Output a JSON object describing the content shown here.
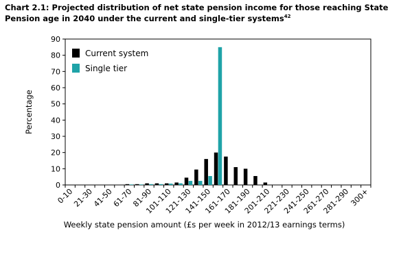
{
  "chart_data": {
    "type": "bar",
    "title": "Chart 2.1: Projected distribution of net state pension income for those reaching State Pension age in 2040 under the current and single-tier systems",
    "title_footnote": "42",
    "xlabel": "Weekly state pension amount (£s per week in 2012/13 earnings terms)",
    "ylabel": "Percentage",
    "ylim": [
      0,
      90
    ],
    "yticks": [
      0,
      10,
      20,
      30,
      40,
      50,
      60,
      70,
      80,
      90
    ],
    "grid": false,
    "legend_position": "top-left",
    "categories": [
      "0-10",
      "11-20",
      "21-30",
      "31-40",
      "41-50",
      "51-60",
      "61-70",
      "71-80",
      "81-90",
      "91-100",
      "101-110",
      "111-120",
      "121-130",
      "131-140",
      "141-150",
      "151-160",
      "161-170",
      "171-180",
      "181-190",
      "191-200",
      "201-210",
      "211-220",
      "221-230",
      "231-240",
      "241-250",
      "251-260",
      "261-270",
      "271-280",
      "281-290",
      "291-300",
      "300+"
    ],
    "labeled_categories": [
      "0-10",
      "21-30",
      "41-50",
      "61-70",
      "81-90",
      "101-110",
      "121-130",
      "141-150",
      "161-170",
      "181-190",
      "201-210",
      "221-230",
      "241-250",
      "261-270",
      "281-290",
      "300+"
    ],
    "series": [
      {
        "name": "Current system",
        "color": "#000000",
        "values": [
          0,
          0,
          0,
          0,
          0,
          0,
          0.5,
          0.5,
          1,
          1,
          1,
          1.5,
          4.5,
          9.5,
          16,
          20,
          17.5,
          11,
          10,
          5.5,
          1.5,
          0,
          0,
          0,
          0,
          0,
          0,
          0,
          0,
          0,
          0
        ]
      },
      {
        "name": "Single tier",
        "color": "#1fa3a8",
        "values": [
          0,
          0,
          0,
          0,
          0,
          0,
          0.3,
          0.3,
          0.5,
          0.5,
          0.8,
          1,
          2.5,
          2.5,
          5.5,
          85,
          0,
          0,
          0,
          0,
          0,
          0,
          0,
          0,
          0,
          0,
          0,
          0,
          0,
          0,
          0
        ]
      }
    ]
  }
}
